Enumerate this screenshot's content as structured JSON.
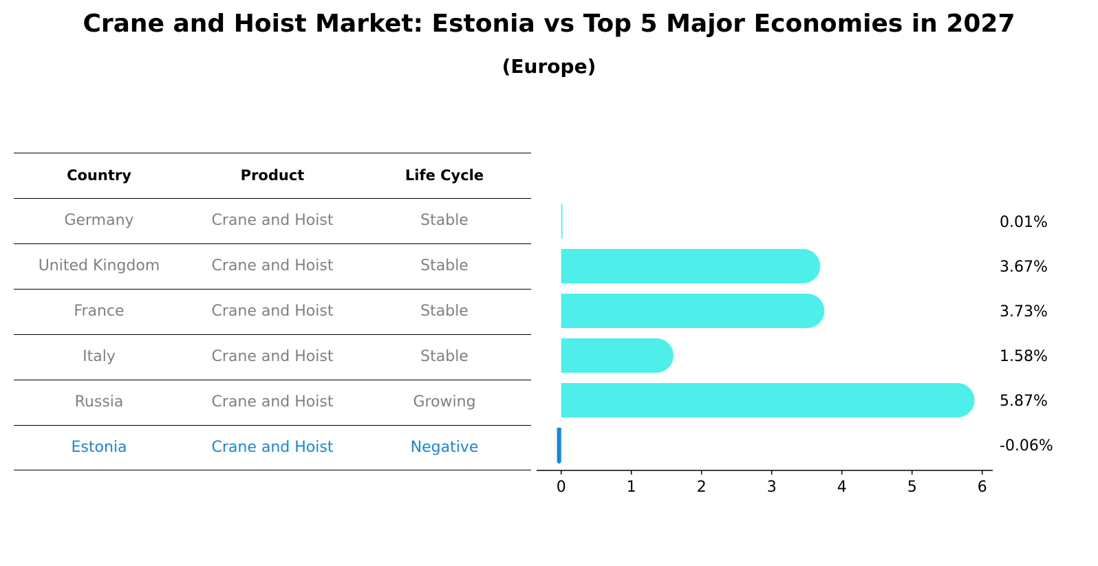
{
  "title": "Crane and Hoist Market: Estonia vs Top 5 Major Economies in 2027",
  "subtitle": "(Europe)",
  "table": {
    "headers": [
      "Country",
      "Product",
      "Life Cycle"
    ],
    "rows": [
      [
        "Germany",
        "Crane and Hoist",
        "Stable"
      ],
      [
        "United Kingdom",
        "Crane and Hoist",
        "Stable"
      ],
      [
        "France",
        "Crane and Hoist",
        "Stable"
      ],
      [
        "Italy",
        "Crane and Hoist",
        "Stable"
      ],
      [
        "Russia",
        "Crane and Hoist",
        "Growing"
      ],
      [
        "Estonia",
        "Crane and Hoist",
        "Negative"
      ]
    ]
  },
  "colors": {
    "bar": "#4eeeea",
    "highlight": "#1a86d9",
    "muted_text": "#808080"
  },
  "chart_data": {
    "type": "bar",
    "orientation": "horizontal",
    "categories": [
      "Germany",
      "United Kingdom",
      "France",
      "Italy",
      "Russia",
      "Estonia"
    ],
    "values": [
      0.01,
      3.67,
      3.73,
      1.58,
      5.87,
      -0.06
    ],
    "value_labels": [
      "0.01%",
      "3.67%",
      "3.73%",
      "1.58%",
      "5.87%",
      "-0.06%"
    ],
    "xlim": [
      -0.35,
      6.15
    ],
    "xticks": [
      "0",
      "1",
      "2",
      "3",
      "4",
      "5",
      "6"
    ],
    "grid": false
  }
}
